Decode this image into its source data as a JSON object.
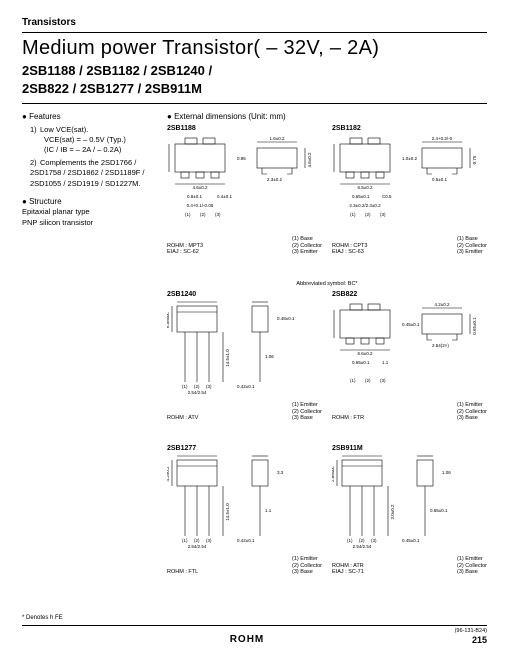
{
  "header_category": "Transistors",
  "title": "Medium power Transistor( – 32V, – 2A)",
  "part_numbers_line1": "2SB1188 / 2SB1182 / 2SB1240 /",
  "part_numbers_line2": "2SB822 / 2SB1277 / 2SB911M",
  "features_heading": "Features",
  "feature1_label": "1)",
  "feature1_text": "Low VCE(sat).",
  "feature1_spec1": "VCE(sat) = – 0.5V (Typ.)",
  "feature1_spec2": "(IC / IB = – 2A / – 0.2A)",
  "feature2_label": "2)",
  "feature2_text": "Complements the 2SD1766 / 2SD1758 / 2SD1862 / 2SD1189F / 2SD1055 / 2SD1919 / SD1227M.",
  "structure_heading": "Structure",
  "structure_line1": "Epitaxial planar type",
  "structure_line2": "PNP silicon transistor",
  "extdim_heading": "External dimensions (Unit: mm)",
  "abbrev_symbol": "Abbreviated symbol: BC*",
  "footnote_halogen": "* Denotes h FE",
  "doc_id": "(96-131-B24)",
  "logo": "ROHM",
  "page_number": "215",
  "packages": [
    {
      "name": "2SB1188",
      "rohm": "ROHM : MPT3",
      "eiaj": "EIAJ : SC-62",
      "pins": [
        "(1) Base",
        "(2) Collector",
        "(3) Emitter"
      ],
      "body": {
        "w": 4.6,
        "h": 2.5
      },
      "dims": [
        "4.6±0.2",
        "2.5±0.2",
        "1.6±0.2",
        "4.6±0.2",
        "0.8±0.1",
        "0.4±0.1",
        "2.3±0.2",
        "0.95",
        "0.4+0.1/-0.05"
      ],
      "type": "smd"
    },
    {
      "name": "2SB1182",
      "rohm": "ROHM : CPT3",
      "eiaj": "EIAJ : SC-63",
      "pins": [
        "(1) Base",
        "(2) Collector",
        "(3) Emitter"
      ],
      "body": {
        "w": 6.5,
        "h": 3.6
      },
      "dims": [
        "6.5±0.2",
        "3.6±0.2",
        "2.4+0.2/-0",
        "0.75",
        "0.65±0.1",
        "C0.5",
        "0.5±0.1",
        "1.0±0.2",
        "2.3±0.2/2.3±0.2"
      ],
      "type": "smd"
    },
    {
      "name": "2SB1240",
      "rohm": "ROHM : ATV",
      "eiaj": "",
      "pins": [
        "(1) Emitter",
        "(2) Collector",
        "(3) Base"
      ],
      "body": {
        "w": 5.0,
        "h": 6.5
      },
      "dims": [
        "5.0Max.",
        "6.5Max.",
        "2.54",
        "14.5±1.0",
        "0.48±0.1",
        "1.06",
        "2.54/2.54",
        "0.42±0.1"
      ],
      "type": "th"
    },
    {
      "name": "2SB822",
      "rohm": "ROHM : FTR",
      "eiaj": "",
      "pins": [
        "(1) Emitter",
        "(2) Collector",
        "(3) Base"
      ],
      "body": {
        "w": 6.6,
        "h": 4.2
      },
      "dims": [
        "6.6±0.2",
        "2.4±0.2",
        "4.2±0.2",
        "0.65±0.1",
        "0.65±0.1",
        "1.1",
        "2.54(2×)",
        "0.45±0.1"
      ],
      "type": "smd"
    },
    {
      "name": "2SB1277",
      "rohm": "ROHM : FTL",
      "eiaj": "",
      "pins": [
        "(1) Emitter",
        "(2) Collector",
        "(3) Base"
      ],
      "body": {
        "w": 6.5,
        "h": 4.2
      },
      "dims": [
        "6.5Max.",
        "4.2±0.2",
        "2.4Max.",
        "14.5±1.0",
        "3.3",
        "1.1",
        "2.54/2.54",
        "0.42±0.1"
      ],
      "type": "th"
    },
    {
      "name": "2SB911M",
      "rohm": "ROHM : ATR",
      "eiaj": "EIAJ : SC-71",
      "pins": [
        "(1) Emitter",
        "(2) Collector",
        "(3) Base"
      ],
      "body": {
        "w": 5.0,
        "h": 3.0
      },
      "dims": [
        "5.0Max.",
        "2.8Max.",
        "14.5±1.0",
        "3.0±0.2",
        "1.06",
        "0.65±0.1",
        "2.54/2.54",
        "0.45±0.1"
      ],
      "type": "th"
    }
  ]
}
